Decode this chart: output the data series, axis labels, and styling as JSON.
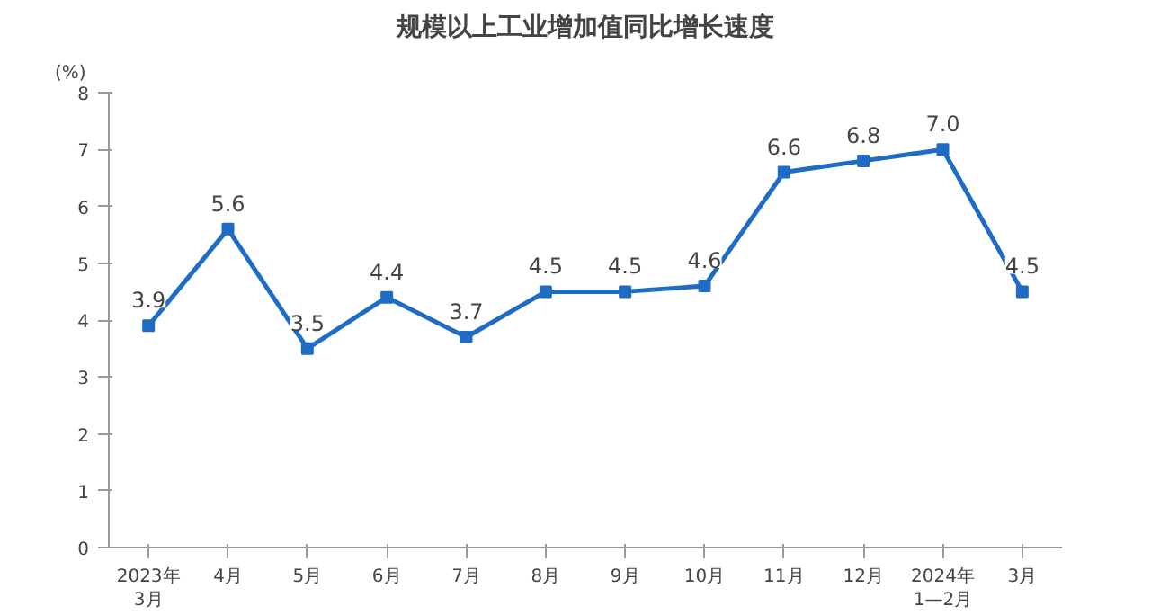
{
  "chart_data": {
    "type": "line",
    "title": "规模以上工业增加值同比增长速度",
    "ylabel": "(%)",
    "categories": [
      "2023年\n3月",
      "4月",
      "5月",
      "6月",
      "7月",
      "8月",
      "9月",
      "10月",
      "11月",
      "12月",
      "2024年\n1—2月",
      "3月"
    ],
    "series": [
      {
        "color": "#1f6cc4",
        "values": [
          3.9,
          5.6,
          3.5,
          4.4,
          3.7,
          4.5,
          4.5,
          4.6,
          6.6,
          6.8,
          7.0,
          4.5
        ],
        "value_labels": [
          "3.9",
          "5.6",
          "3.5",
          "4.4",
          "3.7",
          "4.5",
          "4.5",
          "4.6",
          "6.6",
          "6.8",
          "7.0",
          "4.5"
        ]
      }
    ],
    "ylim": [
      0,
      8
    ],
    "yticks": [
      0,
      1,
      2,
      3,
      4,
      5,
      6,
      7,
      8
    ],
    "grid": false,
    "marker": "square",
    "line_style": "solid"
  }
}
